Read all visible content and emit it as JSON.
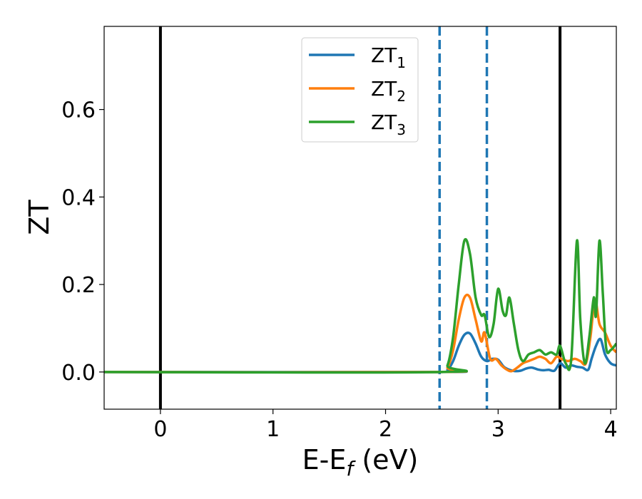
{
  "chart_data": {
    "type": "line",
    "xlabel": "E-E_f (eV)",
    "ylabel": "ZT",
    "xlim": [
      -0.5,
      4.05
    ],
    "ylim": [
      -0.085,
      0.79
    ],
    "xticks": [
      0,
      1,
      2,
      3,
      4
    ],
    "yticks": [
      0.0,
      0.2,
      0.4,
      0.6
    ],
    "ytick_labels": [
      "0.0",
      "0.2",
      "0.4",
      "0.6"
    ],
    "grid": false,
    "legend_position": "top-center",
    "vertical_lines": [
      {
        "x": 0.0,
        "style": "solid",
        "color": "#000000"
      },
      {
        "x": 2.48,
        "style": "dashed",
        "color": "#1f77b4"
      },
      {
        "x": 2.9,
        "style": "dashed",
        "color": "#1f77b4"
      },
      {
        "x": 3.55,
        "style": "solid",
        "color": "#000000"
      }
    ],
    "series": [
      {
        "name": "ZT",
        "subscript": "1",
        "color": "#1f77b4",
        "x": [
          -0.5,
          2.48,
          2.55,
          2.6,
          2.65,
          2.7,
          2.75,
          2.8,
          2.85,
          2.9,
          2.95,
          3.0,
          3.05,
          3.1,
          3.15,
          3.2,
          3.25,
          3.3,
          3.35,
          3.4,
          3.45,
          3.5,
          3.55,
          3.6,
          3.65,
          3.7,
          3.75,
          3.8,
          3.83,
          3.87,
          3.91,
          3.95,
          4.0,
          4.05
        ],
        "y": [
          0.0,
          0.0,
          0.005,
          0.025,
          0.06,
          0.085,
          0.088,
          0.065,
          0.035,
          0.025,
          0.03,
          0.028,
          0.012,
          0.005,
          0.002,
          0.003,
          0.008,
          0.01,
          0.006,
          0.004,
          0.005,
          0.003,
          0.02,
          0.01,
          0.015,
          0.012,
          0.01,
          0.005,
          0.03,
          0.06,
          0.075,
          0.04,
          0.02,
          0.015
        ]
      },
      {
        "name": "ZT",
        "subscript": "2",
        "color": "#ff7f0e",
        "x": [
          -0.5,
          2.48,
          2.55,
          2.6,
          2.65,
          2.7,
          2.75,
          2.8,
          2.85,
          2.88,
          2.93,
          2.98,
          3.03,
          3.08,
          3.12,
          3.17,
          3.22,
          3.27,
          3.32,
          3.37,
          3.42,
          3.47,
          3.52,
          3.56,
          3.62,
          3.68,
          3.73,
          3.78,
          3.82,
          3.86,
          3.9,
          3.95,
          4.0,
          4.05
        ],
        "y": [
          0.0,
          0.0,
          0.01,
          0.05,
          0.12,
          0.17,
          0.17,
          0.12,
          0.07,
          0.09,
          0.03,
          0.03,
          0.015,
          0.005,
          0.002,
          0.01,
          0.02,
          0.025,
          0.03,
          0.035,
          0.03,
          0.02,
          0.035,
          0.03,
          0.025,
          0.03,
          0.025,
          0.02,
          0.08,
          0.165,
          0.11,
          0.09,
          0.06,
          0.045
        ]
      },
      {
        "name": "ZT",
        "subscript": "3",
        "color": "#2ca02c",
        "x": [
          -0.5,
          2.48,
          2.55,
          2.6,
          2.65,
          2.7,
          2.75,
          2.8,
          2.85,
          2.88,
          2.92,
          2.96,
          3.0,
          3.04,
          3.07,
          3.1,
          3.14,
          3.18,
          3.22,
          3.27,
          3.32,
          3.37,
          3.42,
          3.47,
          3.52,
          3.55,
          3.6,
          3.65,
          3.7,
          3.73,
          3.77,
          3.81,
          3.85,
          3.87,
          3.9,
          3.93,
          3.96,
          4.0,
          4.05
        ],
        "y": [
          0.0,
          0.0,
          0.015,
          0.08,
          0.2,
          0.3,
          0.27,
          0.17,
          0.13,
          0.13,
          0.08,
          0.11,
          0.19,
          0.14,
          0.13,
          0.17,
          0.11,
          0.05,
          0.025,
          0.04,
          0.045,
          0.05,
          0.04,
          0.045,
          0.04,
          0.06,
          0.02,
          0.03,
          0.3,
          0.12,
          0.02,
          0.08,
          0.17,
          0.13,
          0.3,
          0.18,
          0.055,
          0.05,
          0.065
        ]
      }
    ]
  }
}
